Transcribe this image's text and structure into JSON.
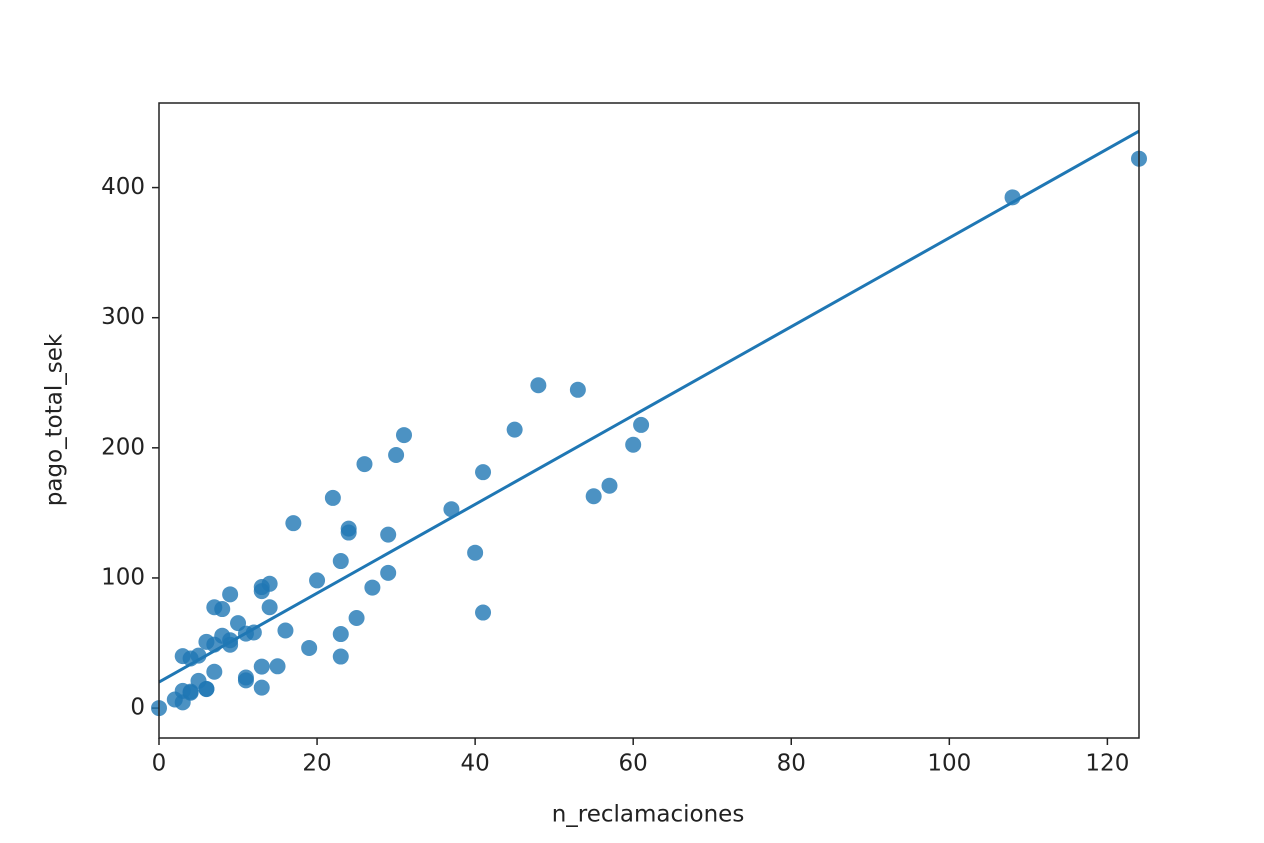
{
  "chart_data": {
    "type": "scatter",
    "x_label": "n_reclamaciones",
    "y_label": "pago_total_sek",
    "x": [
      108,
      19,
      13,
      124,
      40,
      57,
      23,
      14,
      45,
      10,
      5,
      48,
      11,
      23,
      7,
      2,
      24,
      6,
      3,
      23,
      6,
      9,
      9,
      3,
      29,
      7,
      4,
      20,
      7,
      4,
      0,
      25,
      6,
      5,
      22,
      11,
      61,
      12,
      4,
      16,
      13,
      60,
      41,
      37,
      55,
      41,
      11,
      27,
      8,
      3,
      17,
      13,
      13,
      15,
      8,
      29,
      30,
      24,
      9,
      31,
      14,
      53,
      26
    ],
    "values": [
      392.5,
      46.2,
      15.7,
      422.2,
      119.4,
      170.9,
      56.9,
      77.5,
      214,
      65.3,
      20.9,
      248.1,
      23.5,
      39.6,
      48.8,
      6.6,
      134.9,
      50.9,
      4.4,
      113,
      14.8,
      48.7,
      52.1,
      13.2,
      103.9,
      77.5,
      11.8,
      98.1,
      27.9,
      38.1,
      0,
      69.2,
      14.6,
      40.3,
      161.5,
      57.2,
      217.6,
      58.1,
      12.6,
      59.6,
      89.9,
      202.4,
      181.3,
      152.8,
      162.8,
      73.4,
      21.3,
      92.6,
      76.1,
      39.9,
      142.1,
      93,
      31.9,
      32.1,
      55.6,
      133.3,
      194.5,
      137.9,
      87.4,
      209.8,
      95.5,
      244.6,
      187.5
    ],
    "color": "#1f77b4",
    "fit_line": true,
    "xlim": [
      0,
      124
    ],
    "xticks": [
      0,
      20,
      40,
      60,
      80,
      100,
      120
    ],
    "ylim": [
      -23,
      465
    ],
    "yticks": [
      0,
      100,
      200,
      300,
      400
    ]
  }
}
